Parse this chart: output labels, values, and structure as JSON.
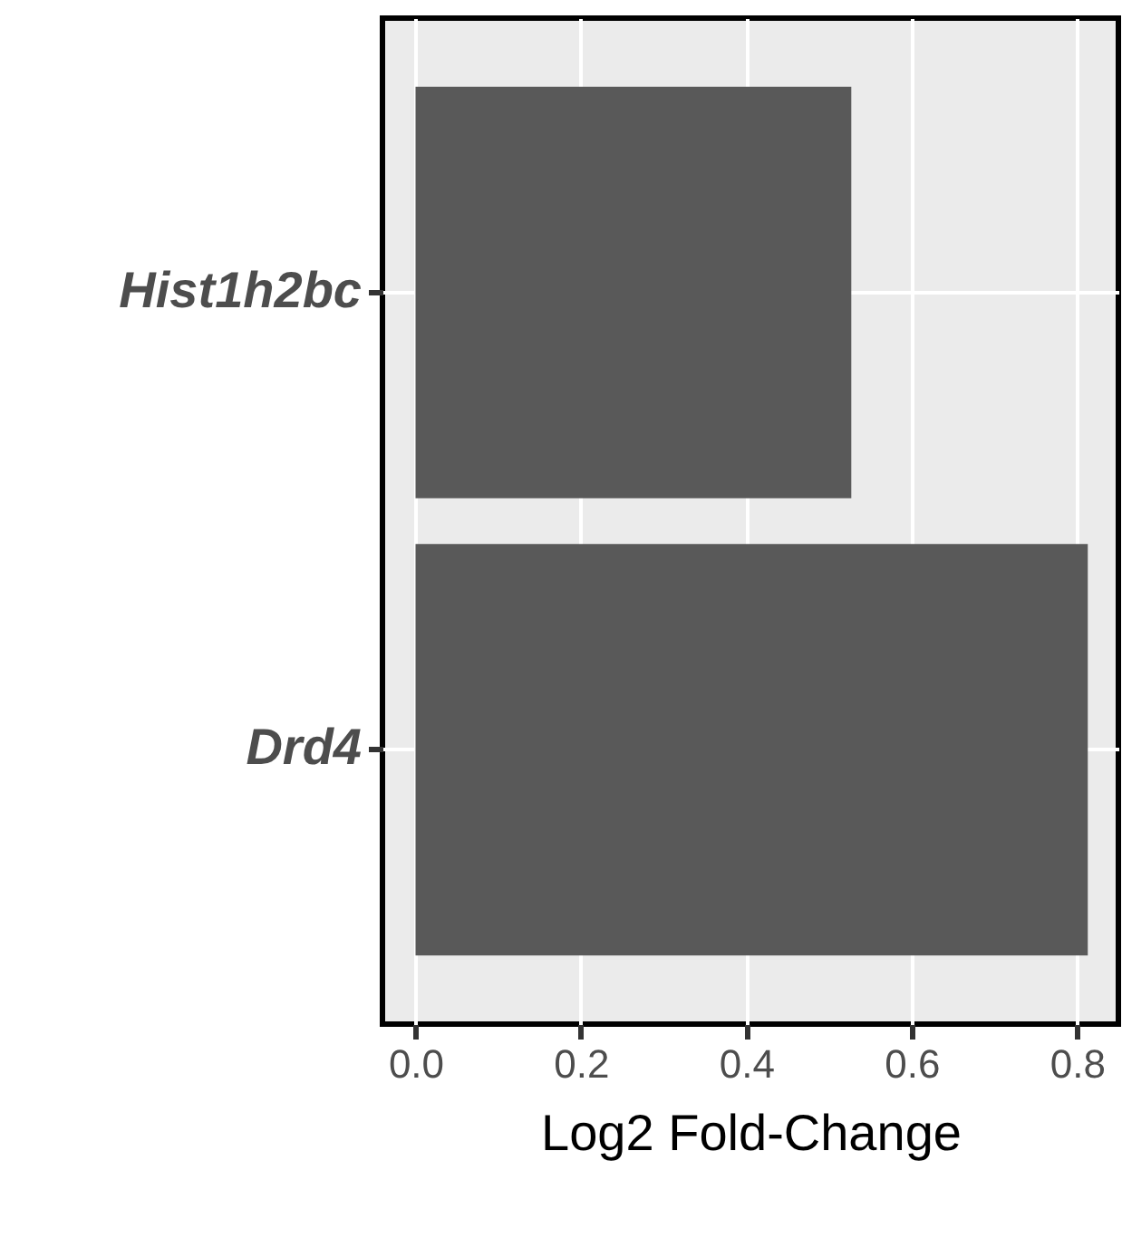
{
  "chart_data": {
    "type": "bar",
    "orientation": "horizontal",
    "categories": [
      "Hist1h2bc",
      "Drd4"
    ],
    "values": [
      0.527,
      0.813
    ],
    "color": "#595959",
    "xlabel": "Log2 Fold-Change",
    "xlim": [
      -0.04,
      0.85
    ],
    "xticks": [
      {
        "value": 0,
        "label": "0.0"
      },
      0.2,
      0.4,
      0.6,
      0.8
    ],
    "grid": true
  }
}
